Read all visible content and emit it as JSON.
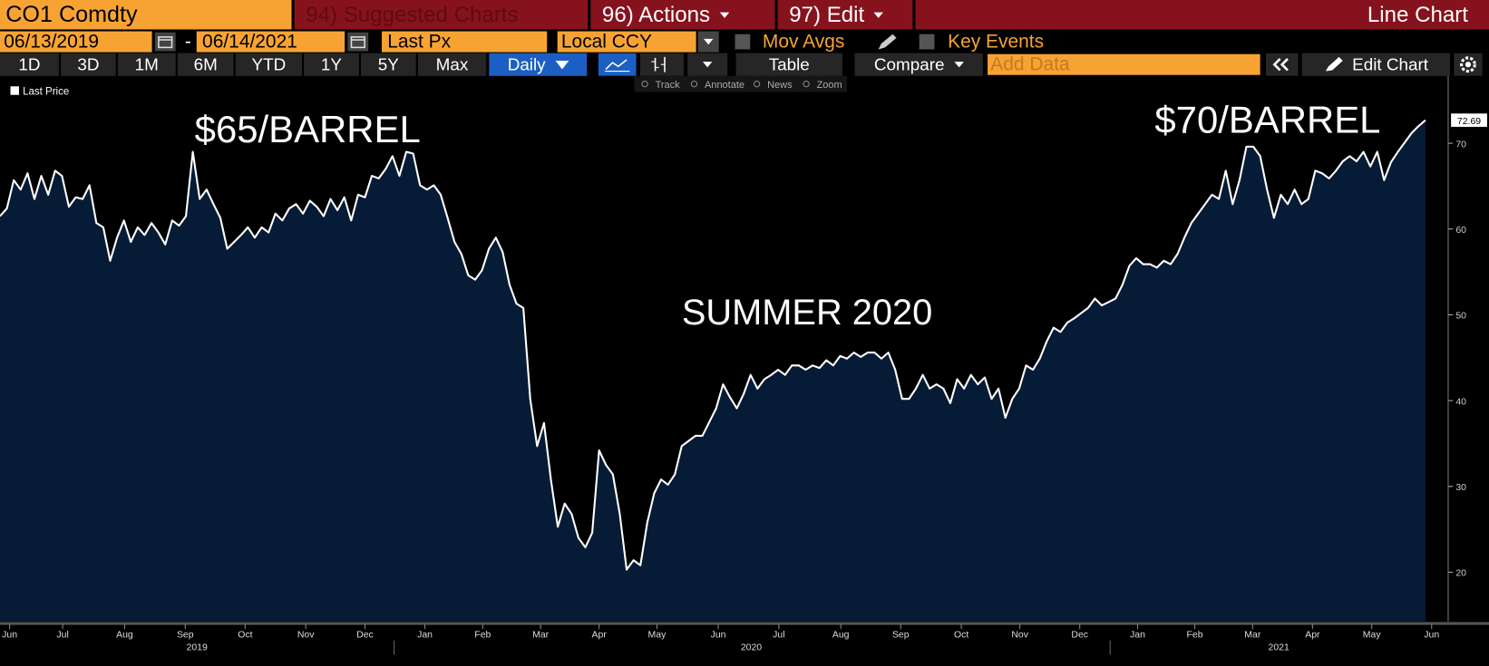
{
  "ui": {
    "security": "CO1 Comdty",
    "menu": [
      "94) Suggested Charts",
      "96) Actions",
      "97) Edit"
    ],
    "view_title": "Line Chart",
    "start_date": "06/13/2019",
    "date_separator": "-",
    "end_date": "06/14/2021",
    "field": "Last Px",
    "currency": "Local CCY",
    "mov_avgs": "Mov Avgs",
    "key_events": "Key Events",
    "periods": [
      "1D",
      "3D",
      "1M",
      "6M",
      "YTD",
      "1Y",
      "5Y",
      "Max"
    ],
    "frequency": "Daily",
    "table": "Table",
    "compare": "Compare",
    "add_data": "Add Data",
    "edit_chart": "Edit Chart",
    "chart_tools": [
      "Track",
      "Annotate",
      "News",
      "Zoom"
    ]
  },
  "chart_data": {
    "type": "area",
    "annotations": [
      "$65/BARREL",
      "SUMMER 2020",
      "$70/BARREL"
    ],
    "series": [
      {
        "name": "Last Price",
        "color": "#ffffff",
        "fill": "#061b36",
        "values": [
          61.5,
          62.4,
          65.7,
          64.6,
          66.5,
          63.5,
          66.2,
          64.0,
          66.8,
          66.2,
          62.6,
          63.7,
          63.5,
          65.1,
          60.7,
          60.2,
          56.3,
          59.0,
          61.0,
          58.5,
          60.2,
          59.3,
          60.7,
          59.6,
          58.2,
          61.0,
          60.4,
          61.5,
          69.0,
          63.5,
          64.6,
          62.9,
          61.3,
          57.7,
          58.5,
          59.3,
          60.2,
          59.0,
          60.2,
          59.6,
          61.8,
          61.0,
          62.4,
          62.9,
          61.8,
          63.3,
          62.6,
          61.5,
          63.5,
          62.2,
          63.7,
          61.0,
          64.0,
          63.7,
          66.2,
          65.9,
          67.0,
          68.5,
          66.2,
          69.0,
          68.8,
          65.1,
          64.6,
          65.1,
          64.0,
          61.3,
          58.5,
          57.1,
          54.6,
          54.1,
          55.2,
          57.7,
          59.0,
          57.3,
          53.5,
          51.3,
          50.8,
          40.2,
          34.7,
          37.4,
          30.8,
          25.3,
          28.0,
          26.8,
          24.0,
          22.9,
          24.6,
          34.2,
          32.5,
          31.4,
          26.8,
          20.3,
          21.4,
          20.8,
          25.8,
          29.2,
          30.8,
          30.2,
          31.4,
          34.7,
          35.3,
          35.9,
          35.9,
          37.5,
          39.1,
          41.9,
          40.4,
          39.1,
          40.8,
          43.0,
          41.4,
          42.5,
          43.0,
          43.6,
          43.0,
          44.1,
          44.1,
          43.6,
          44.1,
          43.8,
          44.7,
          44.1,
          45.2,
          44.9,
          45.6,
          45.1,
          45.6,
          45.6,
          44.9,
          45.6,
          43.6,
          40.2,
          40.2,
          41.4,
          43.0,
          41.4,
          41.9,
          41.4,
          39.7,
          42.5,
          41.4,
          43.0,
          41.9,
          42.7,
          40.2,
          41.4,
          38.0,
          40.2,
          41.4,
          44.1,
          43.6,
          44.9,
          46.9,
          48.5,
          48.0,
          49.1,
          49.6,
          50.2,
          50.8,
          51.9,
          51.1,
          51.5,
          51.9,
          53.5,
          55.7,
          56.6,
          55.9,
          55.9,
          55.5,
          56.3,
          55.9,
          57.1,
          59.0,
          60.7,
          61.8,
          62.9,
          64.0,
          63.5,
          66.8,
          62.9,
          65.7,
          69.6,
          69.6,
          68.5,
          64.6,
          61.3,
          64.0,
          62.9,
          64.6,
          62.9,
          63.5,
          66.8,
          66.5,
          65.9,
          66.8,
          67.9,
          68.5,
          67.9,
          69.0,
          67.3,
          69.0,
          65.7,
          67.8,
          69.0,
          70.1,
          71.2,
          72.0,
          72.69
        ]
      }
    ],
    "xlim": [
      0,
      210.3
    ],
    "ylim": [
      14.25,
      77.85
    ],
    "yticks": [
      20,
      30,
      40,
      50,
      60,
      70
    ],
    "xticks": [
      {
        "value": 1.4,
        "label": "Jun"
      },
      {
        "value": 9.1,
        "label": "Jul"
      },
      {
        "value": 18.1,
        "label": "Aug"
      },
      {
        "value": 26.9,
        "label": "Sep"
      },
      {
        "value": 35.6,
        "label": "Oct"
      },
      {
        "value": 44.4,
        "label": "Nov"
      },
      {
        "value": 53.0,
        "label": "Dec"
      },
      {
        "value": 61.7,
        "label": "Jan"
      },
      {
        "value": 70.1,
        "label": "Feb"
      },
      {
        "value": 78.5,
        "label": "Mar"
      },
      {
        "value": 87.0,
        "label": "Apr"
      },
      {
        "value": 95.4,
        "label": "May"
      },
      {
        "value": 104.3,
        "label": "Jun"
      },
      {
        "value": 113.1,
        "label": "Jul"
      },
      {
        "value": 122.1,
        "label": "Aug"
      },
      {
        "value": 130.8,
        "label": "Sep"
      },
      {
        "value": 139.6,
        "label": "Oct"
      },
      {
        "value": 148.1,
        "label": "Nov"
      },
      {
        "value": 156.8,
        "label": "Dec"
      },
      {
        "value": 165.2,
        "label": "Jan"
      },
      {
        "value": 173.5,
        "label": "Feb"
      },
      {
        "value": 181.9,
        "label": "Mar"
      },
      {
        "value": 190.6,
        "label": "Apr"
      },
      {
        "value": 199.2,
        "label": "May"
      },
      {
        "value": 207.9,
        "label": "Jun"
      }
    ],
    "x_year_labels": [
      {
        "value": 28.6,
        "label": "2019"
      },
      {
        "value": 109.1,
        "label": "2020"
      },
      {
        "value": 185.7,
        "label": "2021"
      }
    ],
    "grid": false,
    "legend": "top-left"
  }
}
